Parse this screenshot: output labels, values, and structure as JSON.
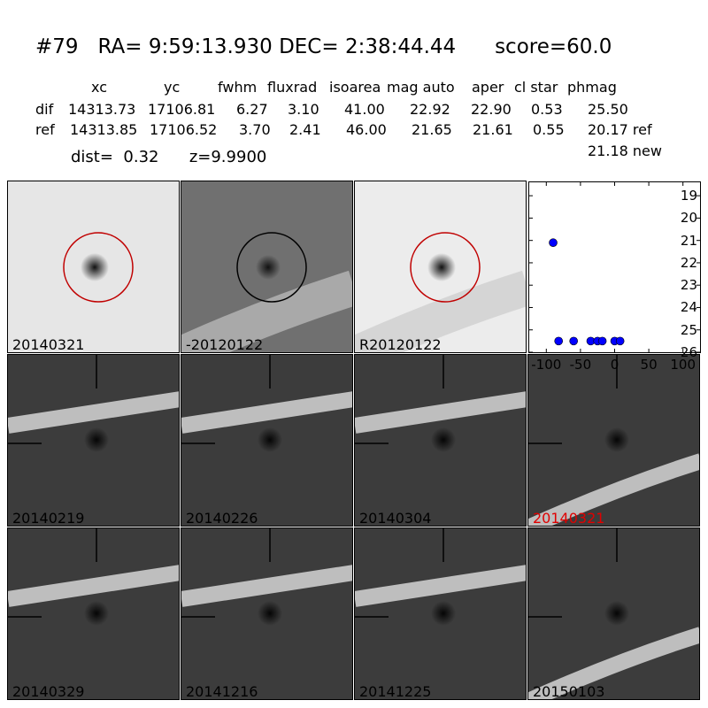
{
  "header": {
    "id": "#79",
    "ra_label": "RA=",
    "ra": "9:59:13.930",
    "dec_label": "DEC=",
    "dec": "2:38:44.44",
    "score_label": "score=",
    "score": "60.0"
  },
  "table": {
    "columns": [
      "xc",
      "yc",
      "fwhm",
      "fluxrad",
      "isoarea",
      "mag auto",
      "aper",
      "cl star",
      "phmag"
    ],
    "rows": [
      {
        "label": "dif",
        "values": [
          "14313.73",
          "17106.81",
          "6.27",
          "3.10",
          "41.00",
          "22.92",
          "22.90",
          "0.53",
          "25.50"
        ]
      },
      {
        "label": "ref",
        "values": [
          "14313.85",
          "17106.52",
          "3.70",
          "2.41",
          "46.00",
          "21.65",
          "21.61",
          "0.55",
          "20.17 ref"
        ]
      }
    ],
    "extra": "21.18 new"
  },
  "dist": {
    "label": "dist=",
    "value": "0.32",
    "z_label": "z=",
    "z": "9.9900"
  },
  "panels": [
    {
      "label": "20140321",
      "kind": "new",
      "color": "#000000"
    },
    {
      "label": "-20120122",
      "kind": "diff",
      "color": "#000000"
    },
    {
      "label": "R20120122",
      "kind": "ref",
      "color": "#000000"
    },
    {
      "label": "20140219",
      "kind": "epoch",
      "color": "#000000"
    },
    {
      "label": "20140226",
      "kind": "epoch",
      "color": "#000000"
    },
    {
      "label": "20140304",
      "kind": "epoch",
      "color": "#000000"
    },
    {
      "label": "20140321",
      "kind": "epoch",
      "color": "#e00000"
    },
    {
      "label": "20140329",
      "kind": "epoch",
      "color": "#000000"
    },
    {
      "label": "20141216",
      "kind": "epoch",
      "color": "#000000"
    },
    {
      "label": "20141225",
      "kind": "epoch",
      "color": "#000000"
    },
    {
      "label": "20150103",
      "kind": "epoch",
      "color": "#000000"
    }
  ],
  "chart_data": {
    "type": "scatter",
    "xlim": [
      -125,
      125
    ],
    "ylim": [
      26,
      18.4
    ],
    "xticks": [
      "-100",
      "-50",
      "0",
      "50",
      "100"
    ],
    "yticks": [
      "19",
      "20",
      "21",
      "22",
      "23",
      "24",
      "25",
      "26"
    ],
    "series": [
      {
        "points": [
          [
            -90,
            21.1
          ],
          [
            -82,
            25.5
          ],
          [
            -60,
            25.5
          ],
          [
            -35,
            25.5
          ],
          [
            -25,
            25.5
          ],
          [
            -18,
            25.5
          ],
          [
            0,
            25.5
          ],
          [
            8,
            25.5
          ]
        ],
        "color": "#0000ff"
      }
    ]
  }
}
